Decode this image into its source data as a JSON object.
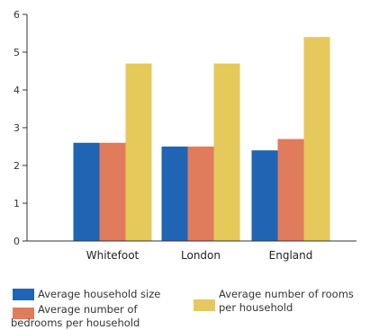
{
  "chart_data": {
    "type": "bar",
    "categories": [
      "Whitefoot",
      "London",
      "England"
    ],
    "series": [
      {
        "name": "Average household size",
        "values": [
          2.6,
          2.5,
          2.4
        ],
        "color": "#1f65b4"
      },
      {
        "name": "Average number of bedrooms per household",
        "values": [
          2.6,
          2.5,
          2.7
        ],
        "color": "#e07b5c"
      },
      {
        "name": "Average number of rooms per household",
        "values": [
          4.7,
          4.7,
          5.4
        ],
        "color": "#e5c95a"
      }
    ],
    "y_ticks": [
      0,
      1,
      2,
      3,
      4,
      5,
      6
    ],
    "ylim": [
      0,
      6
    ],
    "grid": false,
    "legend_position": "bottom"
  }
}
